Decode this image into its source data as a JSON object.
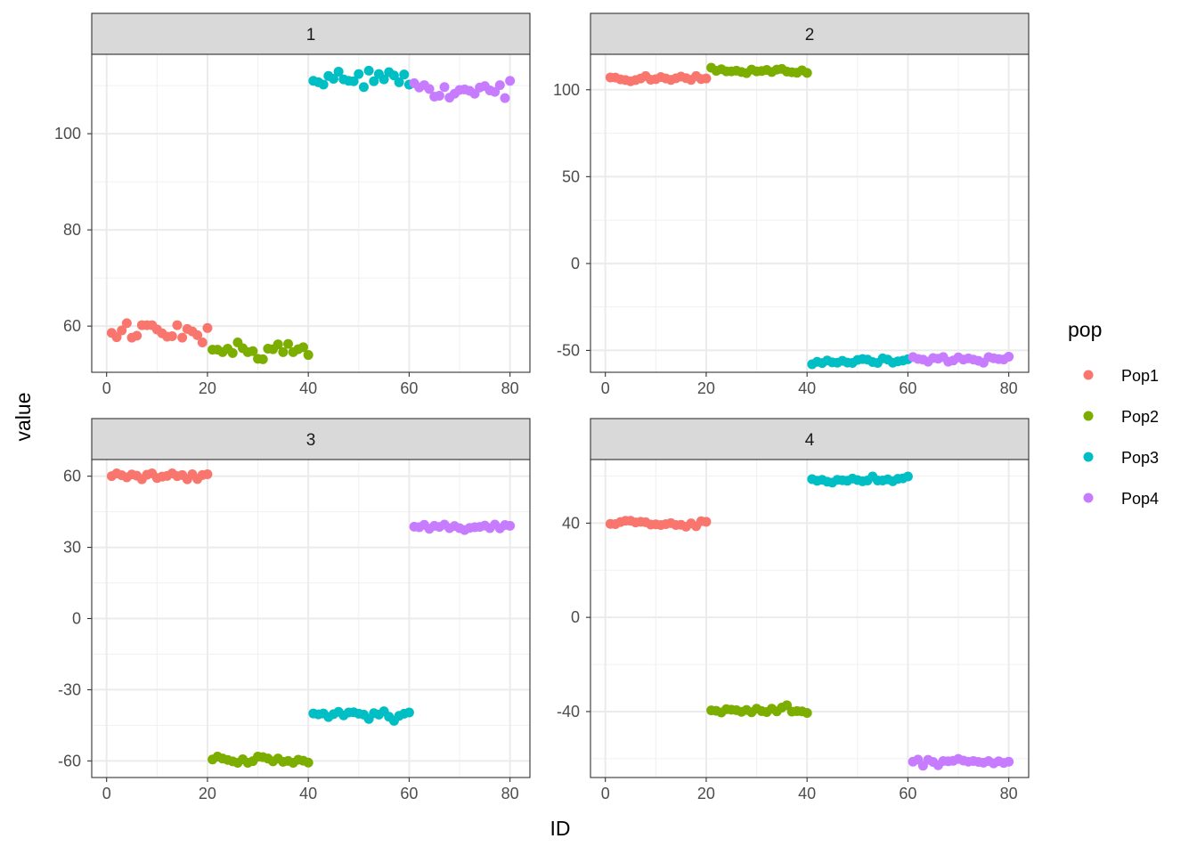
{
  "chart_data": {
    "type": "scatter",
    "xlabel": "ID",
    "ylabel": "value",
    "legend": {
      "title": "pop",
      "position": "right"
    },
    "colors": {
      "Pop1": "#F8766D",
      "Pop2": "#7CAE00",
      "Pop3": "#00BFC4",
      "Pop4": "#C77CFF"
    },
    "grid": true,
    "theme": "bw",
    "xlim": [
      -2.95,
      83.95
    ],
    "x_ticks": [
      0,
      20,
      40,
      60,
      80
    ],
    "facets": [
      {
        "label": "1",
        "ylim": [
          50.4,
          116.5
        ],
        "y_ticks": [
          60,
          80,
          100
        ],
        "series": [
          {
            "name": "Pop1",
            "x": [
              1,
              2,
              3,
              4,
              5,
              6,
              7,
              8,
              9,
              10,
              11,
              12,
              13,
              14,
              15,
              16,
              17,
              18,
              19,
              20
            ],
            "y": [
              58.6,
              57.7,
              59.1,
              60.6,
              57.6,
              58.0,
              60.2,
              60.2,
              60.2,
              59.3,
              58.5,
              57.8,
              57.9,
              60.2,
              57.6,
              59.4,
              58.9,
              58.1,
              56.6,
              59.6
            ]
          },
          {
            "name": "Pop2",
            "x": [
              21,
              22,
              23,
              24,
              25,
              26,
              27,
              28,
              29,
              30,
              31,
              32,
              33,
              34,
              35,
              36,
              37,
              38,
              39,
              40
            ],
            "y": [
              55.1,
              55.1,
              54.6,
              55.3,
              54.4,
              56.6,
              55.4,
              54.6,
              54.8,
              53.2,
              53.1,
              55.3,
              55.2,
              56.2,
              54.6,
              56.3,
              54.6,
              55.2,
              55.6,
              54.0
            ]
          },
          {
            "name": "Pop3",
            "x": [
              41,
              42,
              43,
              44,
              45,
              46,
              47,
              48,
              49,
              50,
              51,
              52,
              53,
              54,
              55,
              56,
              57,
              58,
              59,
              60
            ],
            "y": [
              111.0,
              110.7,
              110.2,
              112.0,
              111.4,
              112.9,
              111.3,
              111.0,
              110.9,
              112.4,
              109.7,
              113.1,
              110.9,
              112.4,
              111.3,
              112.8,
              112.1,
              110.7,
              112.3,
              110.2
            ]
          },
          {
            "name": "Pop4",
            "x": [
              61,
              62,
              63,
              64,
              65,
              66,
              67,
              68,
              69,
              70,
              71,
              72,
              73,
              74,
              75,
              76,
              77,
              78,
              79,
              80
            ],
            "y": [
              110.5,
              109.6,
              110.1,
              109.3,
              107.7,
              107.9,
              109.7,
              107.5,
              108.3,
              109.1,
              109.2,
              108.9,
              108.3,
              109.6,
              109.9,
              109.0,
              108.7,
              110.1,
              107.4,
              111.0
            ]
          }
        ]
      },
      {
        "label": "2",
        "ylim": [
          -62.6,
          120.4
        ],
        "y_ticks": [
          -50,
          0,
          50,
          100
        ],
        "series": [
          {
            "name": "Pop1",
            "x": [
              1,
              2,
              3,
              4,
              5,
              6,
              7,
              8,
              9,
              10,
              11,
              12,
              13,
              14,
              15,
              16,
              17,
              18,
              19,
              20
            ],
            "y": [
              107.1,
              107.0,
              106.0,
              105.6,
              104.9,
              105.6,
              106.5,
              107.9,
              105.8,
              106.1,
              107.3,
              106.5,
              105.7,
              106.6,
              107.6,
              106.7,
              105.7,
              107.9,
              106.2,
              106.5
            ]
          },
          {
            "name": "Pop2",
            "x": [
              21,
              22,
              23,
              24,
              25,
              26,
              27,
              28,
              29,
              30,
              31,
              32,
              33,
              34,
              35,
              36,
              37,
              38,
              39,
              40
            ],
            "y": [
              112.7,
              110.9,
              111.8,
              110.6,
              110.6,
              111.0,
              110.2,
              109.6,
              111.6,
              110.6,
              110.8,
              111.4,
              110.2,
              111.6,
              112.0,
              110.5,
              110.1,
              109.8,
              111.2,
              109.7
            ]
          },
          {
            "name": "Pop3",
            "x": [
              41,
              42,
              43,
              44,
              45,
              46,
              47,
              48,
              49,
              50,
              51,
              52,
              53,
              54,
              55,
              56,
              57,
              58,
              59,
              60
            ],
            "y": [
              -58.0,
              -56.6,
              -57.3,
              -55.8,
              -56.9,
              -57.1,
              -56.0,
              -57.0,
              -57.2,
              -55.5,
              -55.0,
              -55.3,
              -56.7,
              -57.2,
              -54.6,
              -55.3,
              -57.1,
              -56.3,
              -55.9,
              -55.1
            ]
          },
          {
            "name": "Pop4",
            "x": [
              61,
              62,
              63,
              64,
              65,
              66,
              67,
              68,
              69,
              70,
              71,
              72,
              73,
              74,
              75,
              76,
              77,
              78,
              79,
              80
            ],
            "y": [
              -53.8,
              -54.9,
              -55.3,
              -56.5,
              -54.4,
              -54.8,
              -53.8,
              -56.5,
              -55.8,
              -54.0,
              -55.3,
              -54.6,
              -55.3,
              -56.0,
              -57.1,
              -53.9,
              -54.5,
              -55.0,
              -55.2,
              -53.6
            ]
          }
        ]
      },
      {
        "label": "3",
        "ylim": [
          -67.0,
          67.0
        ],
        "y_ticks": [
          -60,
          -30,
          0,
          30,
          60
        ],
        "series": [
          {
            "name": "Pop1",
            "x": [
              1,
              2,
              3,
              4,
              5,
              6,
              7,
              8,
              9,
              10,
              11,
              12,
              13,
              14,
              15,
              16,
              17,
              18,
              19,
              20
            ],
            "y": [
              60.0,
              61.2,
              60.4,
              59.5,
              60.7,
              60.2,
              58.7,
              60.6,
              61.2,
              59.2,
              59.8,
              60.1,
              61.2,
              60.0,
              60.5,
              58.7,
              60.8,
              58.8,
              60.5,
              60.8
            ]
          },
          {
            "name": "Pop2",
            "x": [
              21,
              22,
              23,
              24,
              25,
              26,
              27,
              28,
              29,
              30,
              31,
              32,
              33,
              34,
              35,
              36,
              37,
              38,
              39,
              40
            ],
            "y": [
              -59.4,
              -58.2,
              -59.0,
              -59.6,
              -60.2,
              -60.8,
              -59.3,
              -60.8,
              -60.1,
              -58.2,
              -58.4,
              -59.0,
              -60.2,
              -59.0,
              -60.4,
              -60.0,
              -60.8,
              -59.5,
              -59.9,
              -60.7
            ]
          },
          {
            "name": "Pop3",
            "x": [
              41,
              42,
              43,
              44,
              45,
              46,
              47,
              48,
              49,
              50,
              51,
              52,
              53,
              54,
              55,
              56,
              57,
              58,
              59,
              60
            ],
            "y": [
              -40.0,
              -40.4,
              -40.0,
              -41.5,
              -40.3,
              -39.3,
              -40.8,
              -39.6,
              -39.5,
              -40.1,
              -40.5,
              -42.3,
              -39.9,
              -40.5,
              -39.1,
              -41.4,
              -43.1,
              -41.0,
              -40.1,
              -39.6
            ]
          },
          {
            "name": "Pop4",
            "x": [
              61,
              62,
              63,
              64,
              65,
              66,
              67,
              68,
              69,
              70,
              71,
              72,
              73,
              74,
              75,
              76,
              77,
              78,
              79,
              80
            ],
            "y": [
              38.7,
              38.5,
              39.5,
              37.8,
              39.1,
              38.6,
              39.6,
              38.1,
              39.0,
              38.1,
              37.3,
              38.2,
              38.5,
              38.6,
              39.2,
              38.1,
              39.6,
              38.0,
              39.4,
              39.1
            ]
          }
        ]
      },
      {
        "label": "4",
        "ylim": [
          -68.0,
          67.0
        ],
        "y_ticks": [
          -40,
          0,
          40
        ],
        "series": [
          {
            "name": "Pop1",
            "x": [
              1,
              2,
              3,
              4,
              5,
              6,
              7,
              8,
              9,
              10,
              11,
              12,
              13,
              14,
              15,
              16,
              17,
              18,
              19,
              20
            ],
            "y": [
              39.7,
              39.6,
              40.5,
              41.0,
              41.0,
              40.3,
              40.6,
              40.4,
              39.4,
              39.5,
              39.2,
              39.6,
              40.0,
              39.2,
              39.3,
              38.5,
              39.9,
              38.7,
              40.8,
              40.6
            ]
          },
          {
            "name": "Pop2",
            "x": [
              21,
              22,
              23,
              24,
              25,
              26,
              27,
              28,
              29,
              30,
              31,
              32,
              33,
              34,
              35,
              36,
              37,
              38,
              39,
              40
            ],
            "y": [
              -39.5,
              -39.7,
              -40.4,
              -39.0,
              -39.2,
              -39.4,
              -40.1,
              -39.3,
              -40.3,
              -38.8,
              -39.8,
              -40.2,
              -38.8,
              -39.9,
              -38.3,
              -37.3,
              -40.0,
              -39.8,
              -39.9,
              -40.6
            ]
          },
          {
            "name": "Pop3",
            "x": [
              41,
              42,
              43,
              44,
              45,
              46,
              47,
              48,
              49,
              50,
              51,
              52,
              53,
              54,
              55,
              56,
              57,
              58,
              59,
              60
            ],
            "y": [
              58.7,
              58.0,
              58.4,
              57.6,
              57.2,
              58.4,
              58.2,
              58.0,
              58.9,
              58.3,
              57.8,
              58.1,
              59.8,
              58.1,
              58.1,
              58.6,
              57.8,
              58.8,
              59.0,
              59.8
            ]
          },
          {
            "name": "Pop4",
            "x": [
              61,
              62,
              63,
              64,
              65,
              66,
              67,
              68,
              69,
              70,
              71,
              72,
              73,
              74,
              75,
              76,
              77,
              78,
              79,
              80
            ],
            "y": [
              -61.3,
              -60.4,
              -63.0,
              -60.5,
              -61.4,
              -62.8,
              -61.0,
              -61.1,
              -60.9,
              -60.1,
              -60.8,
              -61.3,
              -61.0,
              -61.4,
              -61.7,
              -61.0,
              -62.0,
              -61.1,
              -61.8,
              -61.3
            ]
          }
        ]
      }
    ]
  }
}
